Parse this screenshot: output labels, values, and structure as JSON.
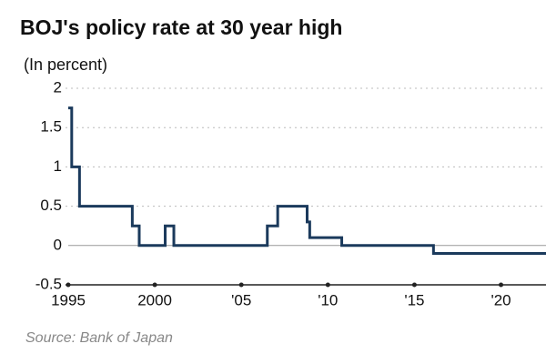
{
  "chart_data": {
    "type": "line",
    "step": "post",
    "title": "BOJ's policy rate at 30 year high",
    "subtitle": "(In percent)",
    "source": "Source: Bank of Japan",
    "x": [
      1995.0,
      1995.2,
      1995.65,
      1998.7,
      1999.1,
      2000.6,
      2001.1,
      2006.5,
      2007.1,
      2008.8,
      2008.95,
      2010.8,
      2016.1,
      2022.6
    ],
    "values": [
      1.75,
      1.0,
      0.5,
      0.25,
      0.0,
      0.25,
      0.0,
      0.25,
      0.5,
      0.3,
      0.1,
      0.0,
      -0.1,
      -0.1
    ],
    "color": "#1b3a5c",
    "xlim": [
      1995,
      2022.6
    ],
    "ylim": [
      -0.5,
      2
    ],
    "xticks": [
      1995,
      2000,
      {
        "value": 2005,
        "label": "'05"
      },
      {
        "value": 2010,
        "label": "'10"
      },
      {
        "value": 2015,
        "label": "'15"
      },
      {
        "value": 2020,
        "label": "'20"
      }
    ],
    "yticks": [
      -0.5,
      0,
      0.5,
      1,
      1.5,
      2
    ],
    "grid": true
  }
}
